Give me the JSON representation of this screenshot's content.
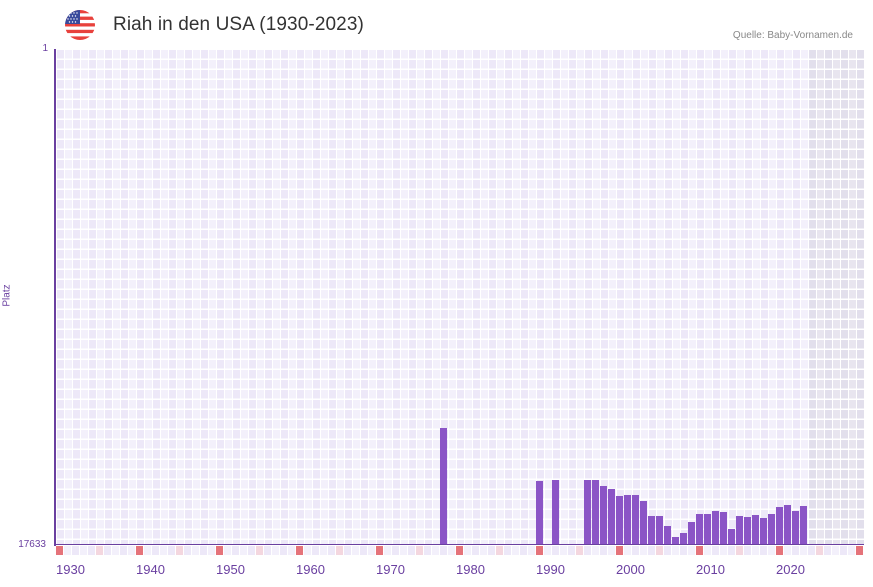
{
  "header": {
    "flag_icon": "us-flag-icon",
    "title": "Riah in den USA (1930-2023)",
    "source": "Quelle: Baby-Vornamen.de"
  },
  "axis": {
    "y_top": "1",
    "y_bottom": "17633",
    "y_label": "Platz",
    "x_ticks": [
      "1930",
      "1940",
      "1950",
      "1960",
      "1970",
      "1980",
      "1990",
      "2000",
      "2010",
      "2020"
    ]
  },
  "colors": {
    "bar": "#8b55c6",
    "axis": "#6a3fa0",
    "grid_a": "#ede8f8",
    "grid_b": "#f3f0fb",
    "future_a": "#e2dfec",
    "future_b": "#e8e5ef",
    "decade_marker": "#e5737a",
    "half_decade_marker": "#f4d7df"
  },
  "chart_data": {
    "type": "bar",
    "title": "Riah in den USA (1930-2023)",
    "xlabel": "",
    "ylabel": "Platz",
    "ylim": [
      17633,
      1
    ],
    "y_inverted": true,
    "x_range": [
      1930,
      2030
    ],
    "grid": true,
    "x": [
      1978,
      1990,
      1992,
      1996,
      1997,
      1998,
      1999,
      2000,
      2001,
      2002,
      2003,
      2004,
      2005,
      2006,
      2007,
      2008,
      2009,
      2010,
      2011,
      2012,
      2013,
      2014,
      2015,
      2016,
      2017,
      2018,
      2019,
      2020,
      2021,
      2022,
      2023
    ],
    "values": [
      13474,
      15357,
      15322,
      15322,
      15322,
      15535,
      15642,
      15891,
      15855,
      15855,
      16069,
      16602,
      16602,
      16958,
      17349,
      17206,
      16815,
      16531,
      16531,
      16424,
      16460,
      17064,
      16602,
      16638,
      16566,
      16673,
      16531,
      16282,
      16211,
      16424,
      16247
    ],
    "series": [
      {
        "name": "Riah",
        "values": [
          13474,
          15357,
          15322,
          15322,
          15322,
          15535,
          15642,
          15891,
          15855,
          15855,
          16069,
          16602,
          16602,
          16958,
          17349,
          17206,
          16815,
          16531,
          16531,
          16424,
          16460,
          17064,
          16602,
          16638,
          16566,
          16673,
          16531,
          16282,
          16211,
          16424,
          16247
        ]
      }
    ]
  }
}
